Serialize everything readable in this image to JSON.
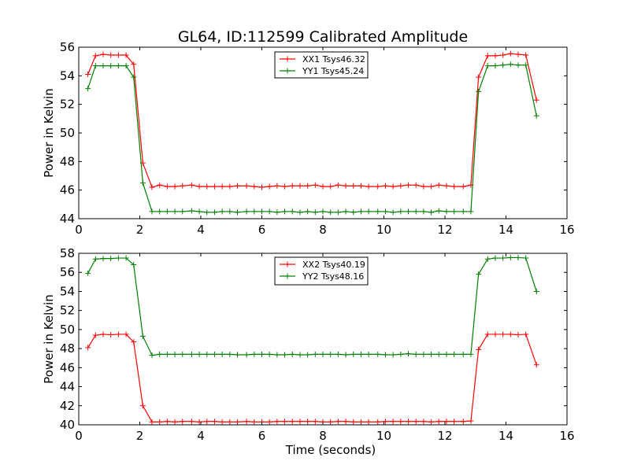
{
  "title": "GL64, ID:112599 Calibrated Amplitude",
  "chart_data": [
    {
      "type": "line",
      "title": "GL64, ID:112599 Calibrated Amplitude",
      "xlabel": "",
      "ylabel": "Power in Kelvin",
      "xlim": [
        0,
        16
      ],
      "ylim": [
        44,
        56
      ],
      "xticks": [
        0,
        2,
        4,
        6,
        8,
        10,
        12,
        14,
        16
      ],
      "yticks": [
        44,
        46,
        48,
        50,
        52,
        54,
        56
      ],
      "legend_position": "top-center",
      "grid": false,
      "x": [
        0.3,
        0.55,
        0.8,
        1.05,
        1.3,
        1.55,
        1.8,
        2.1,
        2.4,
        2.65,
        2.9,
        3.15,
        3.4,
        3.7,
        3.95,
        4.2,
        4.45,
        4.7,
        4.95,
        5.2,
        5.5,
        5.75,
        6.0,
        6.25,
        6.5,
        6.75,
        7.0,
        7.25,
        7.5,
        7.75,
        8.0,
        8.25,
        8.5,
        8.75,
        9.0,
        9.25,
        9.5,
        9.8,
        10.05,
        10.3,
        10.55,
        10.8,
        11.05,
        11.3,
        11.55,
        11.8,
        12.05,
        12.3,
        12.6,
        12.85,
        13.1,
        13.4,
        13.65,
        13.9,
        14.15,
        14.4,
        14.65,
        15.0
      ],
      "series": [
        {
          "name": "XX1 Tsys46.32",
          "color": "#ff0000",
          "values": [
            54.1,
            55.4,
            55.5,
            55.45,
            55.45,
            55.45,
            54.8,
            47.9,
            46.2,
            46.35,
            46.25,
            46.25,
            46.3,
            46.35,
            46.25,
            46.25,
            46.25,
            46.25,
            46.25,
            46.3,
            46.3,
            46.25,
            46.2,
            46.25,
            46.3,
            46.25,
            46.3,
            46.3,
            46.3,
            46.35,
            46.25,
            46.25,
            46.35,
            46.3,
            46.3,
            46.3,
            46.25,
            46.25,
            46.3,
            46.25,
            46.3,
            46.35,
            46.35,
            46.25,
            46.25,
            46.35,
            46.3,
            46.25,
            46.25,
            46.35,
            53.9,
            55.4,
            55.4,
            55.45,
            55.55,
            55.5,
            55.45,
            52.3
          ]
        },
        {
          "name": "YY1 Tsys45.24",
          "color": "#008000",
          "values": [
            53.1,
            54.7,
            54.7,
            54.7,
            54.7,
            54.7,
            53.9,
            46.5,
            44.5,
            44.5,
            44.5,
            44.5,
            44.5,
            44.55,
            44.5,
            44.45,
            44.45,
            44.5,
            44.5,
            44.45,
            44.5,
            44.5,
            44.5,
            44.5,
            44.45,
            44.5,
            44.5,
            44.45,
            44.5,
            44.45,
            44.5,
            44.45,
            44.45,
            44.5,
            44.45,
            44.5,
            44.5,
            44.5,
            44.5,
            44.45,
            44.5,
            44.5,
            44.5,
            44.5,
            44.45,
            44.55,
            44.5,
            44.5,
            44.5,
            44.5,
            52.9,
            54.7,
            54.7,
            54.75,
            54.8,
            54.75,
            54.75,
            51.2
          ]
        }
      ]
    },
    {
      "type": "line",
      "title": "",
      "xlabel": "Time (seconds)",
      "ylabel": "Power in Kelvin",
      "xlim": [
        0,
        16
      ],
      "ylim": [
        40,
        58
      ],
      "xticks": [
        0,
        2,
        4,
        6,
        8,
        10,
        12,
        14,
        16
      ],
      "yticks": [
        40,
        42,
        44,
        46,
        48,
        50,
        52,
        54,
        56,
        58
      ],
      "legend_position": "top-center",
      "grid": false,
      "x": [
        0.3,
        0.55,
        0.8,
        1.05,
        1.3,
        1.55,
        1.8,
        2.1,
        2.4,
        2.65,
        2.9,
        3.15,
        3.4,
        3.7,
        3.95,
        4.2,
        4.45,
        4.7,
        4.95,
        5.2,
        5.5,
        5.75,
        6.0,
        6.25,
        6.5,
        6.75,
        7.0,
        7.25,
        7.5,
        7.75,
        8.0,
        8.25,
        8.5,
        8.75,
        9.0,
        9.25,
        9.5,
        9.8,
        10.05,
        10.3,
        10.55,
        10.8,
        11.05,
        11.3,
        11.55,
        11.8,
        12.05,
        12.3,
        12.6,
        12.85,
        13.1,
        13.4,
        13.65,
        13.9,
        14.15,
        14.4,
        14.65,
        15.0
      ],
      "series": [
        {
          "name": "XX2 Tsys40.19",
          "color": "#ff0000",
          "values": [
            48.1,
            49.4,
            49.5,
            49.45,
            49.5,
            49.5,
            48.7,
            42.0,
            40.3,
            40.3,
            40.35,
            40.3,
            40.35,
            40.35,
            40.3,
            40.35,
            40.35,
            40.3,
            40.3,
            40.3,
            40.35,
            40.3,
            40.3,
            40.3,
            40.35,
            40.35,
            40.35,
            40.35,
            40.35,
            40.35,
            40.3,
            40.3,
            40.35,
            40.35,
            40.3,
            40.3,
            40.3,
            40.3,
            40.35,
            40.35,
            40.35,
            40.35,
            40.35,
            40.35,
            40.3,
            40.35,
            40.35,
            40.35,
            40.35,
            40.4,
            47.9,
            49.5,
            49.5,
            49.5,
            49.5,
            49.45,
            49.5,
            46.3
          ]
        },
        {
          "name": "YY2 Tsys48.16",
          "color": "#008000",
          "values": [
            55.9,
            57.4,
            57.45,
            57.45,
            57.5,
            57.5,
            56.8,
            49.3,
            47.3,
            47.4,
            47.4,
            47.4,
            47.4,
            47.4,
            47.4,
            47.4,
            47.4,
            47.4,
            47.4,
            47.35,
            47.35,
            47.4,
            47.4,
            47.4,
            47.35,
            47.35,
            47.4,
            47.35,
            47.35,
            47.4,
            47.4,
            47.4,
            47.4,
            47.35,
            47.4,
            47.4,
            47.4,
            47.4,
            47.35,
            47.35,
            47.4,
            47.45,
            47.4,
            47.4,
            47.4,
            47.4,
            47.4,
            47.4,
            47.4,
            47.4,
            55.8,
            57.4,
            57.5,
            57.5,
            57.55,
            57.55,
            57.5,
            54.0
          ]
        }
      ]
    }
  ]
}
